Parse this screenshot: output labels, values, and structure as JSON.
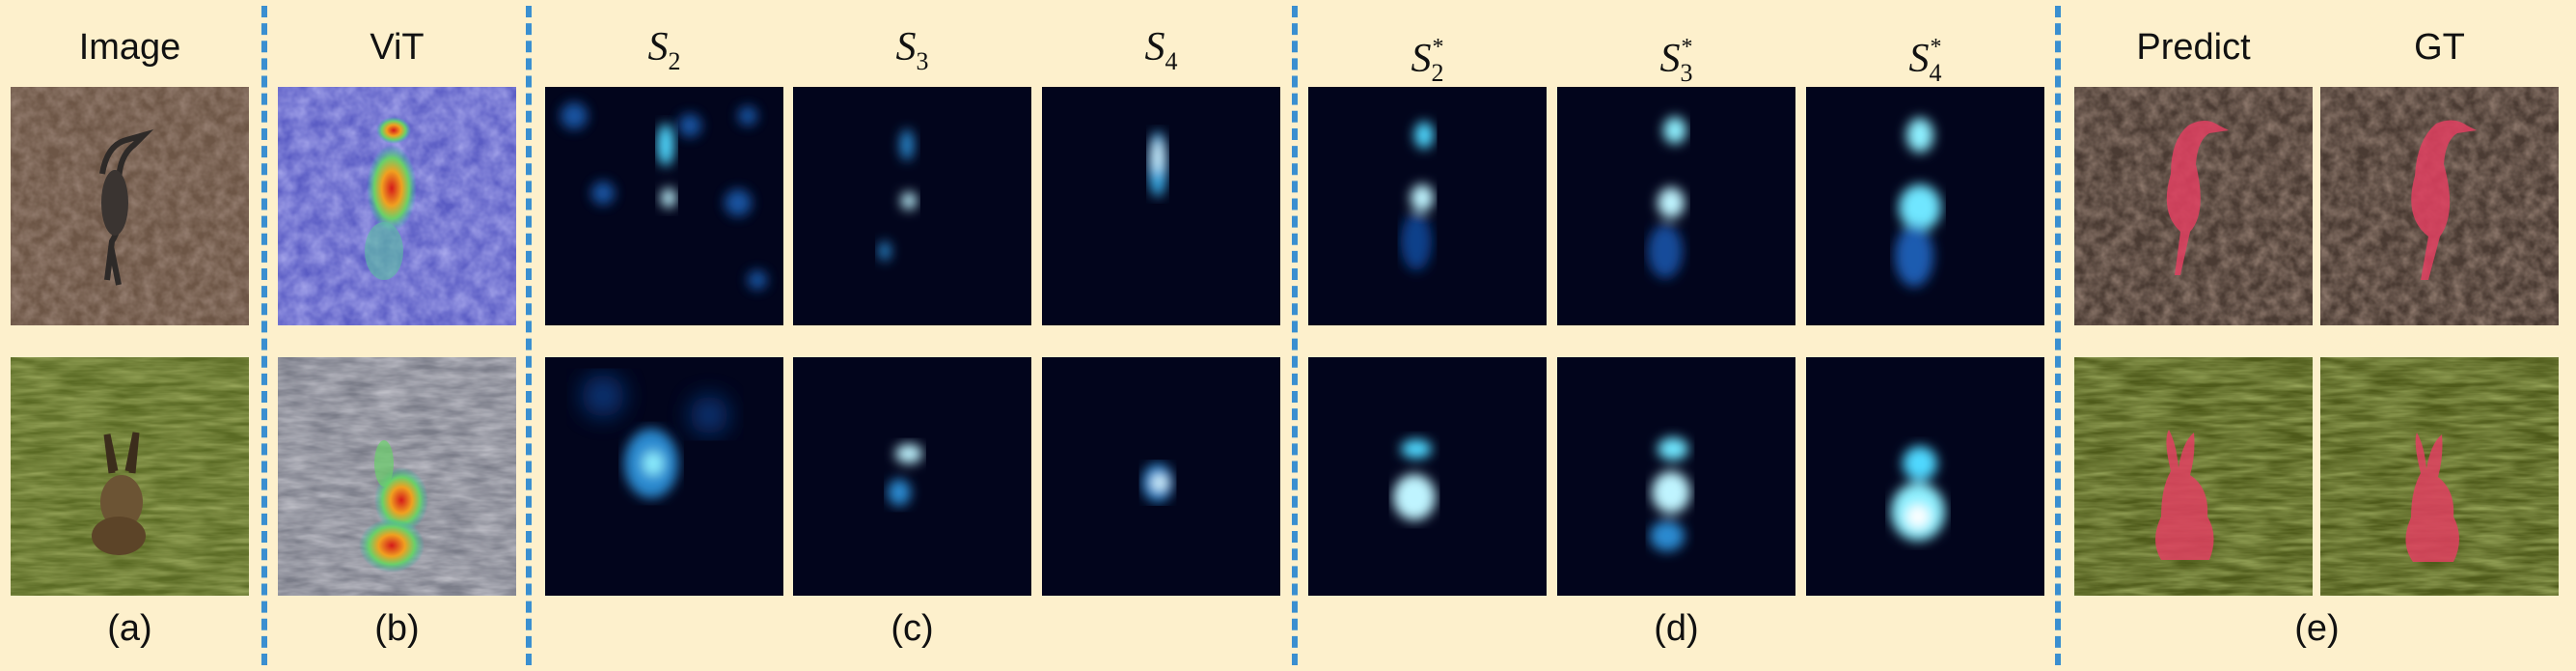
{
  "headers": {
    "image": "Image",
    "vit": "ViT",
    "s2": "S",
    "s3": "S",
    "s4": "S",
    "s2_star": "S",
    "s3_star": "S",
    "s4_star": "S",
    "predict": "Predict",
    "gt": "GT"
  },
  "subscripts": {
    "s2": "2",
    "s3": "3",
    "s4": "4",
    "s2_star": "2",
    "s3_star": "3",
    "s4_star": "4",
    "star": "*"
  },
  "captions": {
    "a": "(a)",
    "b": "(b)",
    "c": "(c)",
    "d": "(d)",
    "e": "(e)"
  },
  "colors": {
    "background": "#fdf0cc",
    "separator": "#3a8fd0",
    "mask": "#e04060",
    "heat_bg": "#02051c",
    "heat_glow": "#4fd8ff"
  },
  "rows": [
    "bird",
    "hare"
  ]
}
